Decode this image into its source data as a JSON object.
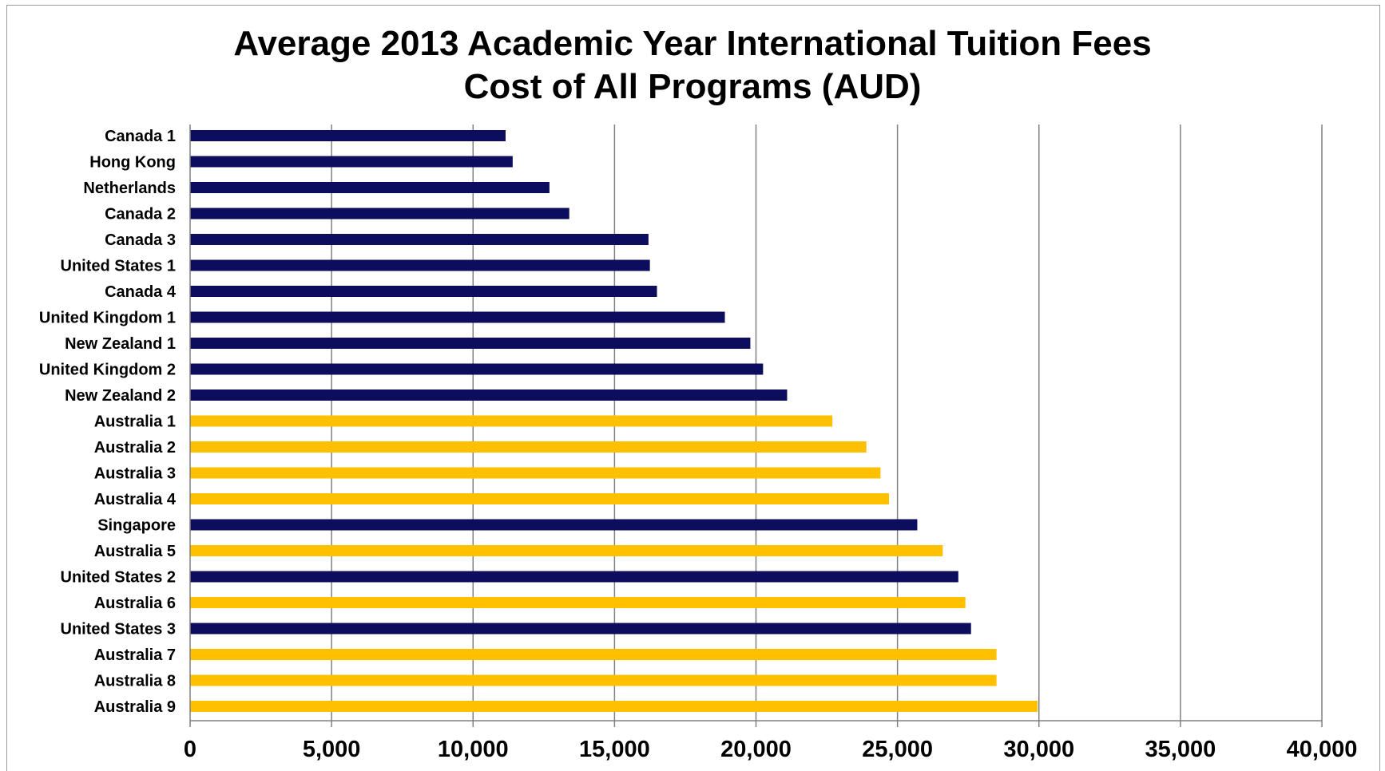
{
  "chart_data": {
    "type": "bar",
    "orientation": "horizontal",
    "title": "Average 2013 Academic Year International Tuition Fees",
    "subtitle": "Cost of All Programs (AUD)",
    "xlabel": "",
    "ylabel": "",
    "xlim": [
      0,
      40000
    ],
    "x_ticks": [
      "0",
      "5,000",
      "10,000",
      "15,000",
      "20,000",
      "25,000",
      "30,000",
      "35,000",
      "40,000"
    ],
    "grid": true,
    "legend": "none",
    "colors": {
      "other": "#0d0d5e",
      "australia": "#ffc000",
      "grid": "#808080",
      "axis": "#808080"
    },
    "categories": [
      "Canada 1",
      "Hong Kong",
      "Netherlands",
      "Canada 2",
      "Canada 3",
      "United States 1",
      "Canada 4",
      "United Kingdom 1",
      "New Zealand 1",
      "United Kingdom 2",
      "New Zealand 2",
      "Australia 1",
      "Australia 2",
      "Australia 3",
      "Australia 4",
      "Singapore",
      "Australia 5",
      "United States 2",
      "Australia 6",
      "United States 3",
      "Australia 7",
      "Australia 8",
      "Australia 9"
    ],
    "values": [
      11150,
      11400,
      12700,
      13400,
      16200,
      16250,
      16500,
      18900,
      19800,
      20250,
      21100,
      22700,
      23900,
      24400,
      24700,
      25700,
      26600,
      27150,
      27400,
      27600,
      28500,
      28500,
      29950
    ],
    "bar_color_group": [
      "other",
      "other",
      "other",
      "other",
      "other",
      "other",
      "other",
      "other",
      "other",
      "other",
      "other",
      "australia",
      "australia",
      "australia",
      "australia",
      "other",
      "australia",
      "other",
      "australia",
      "other",
      "australia",
      "australia",
      "australia"
    ]
  }
}
